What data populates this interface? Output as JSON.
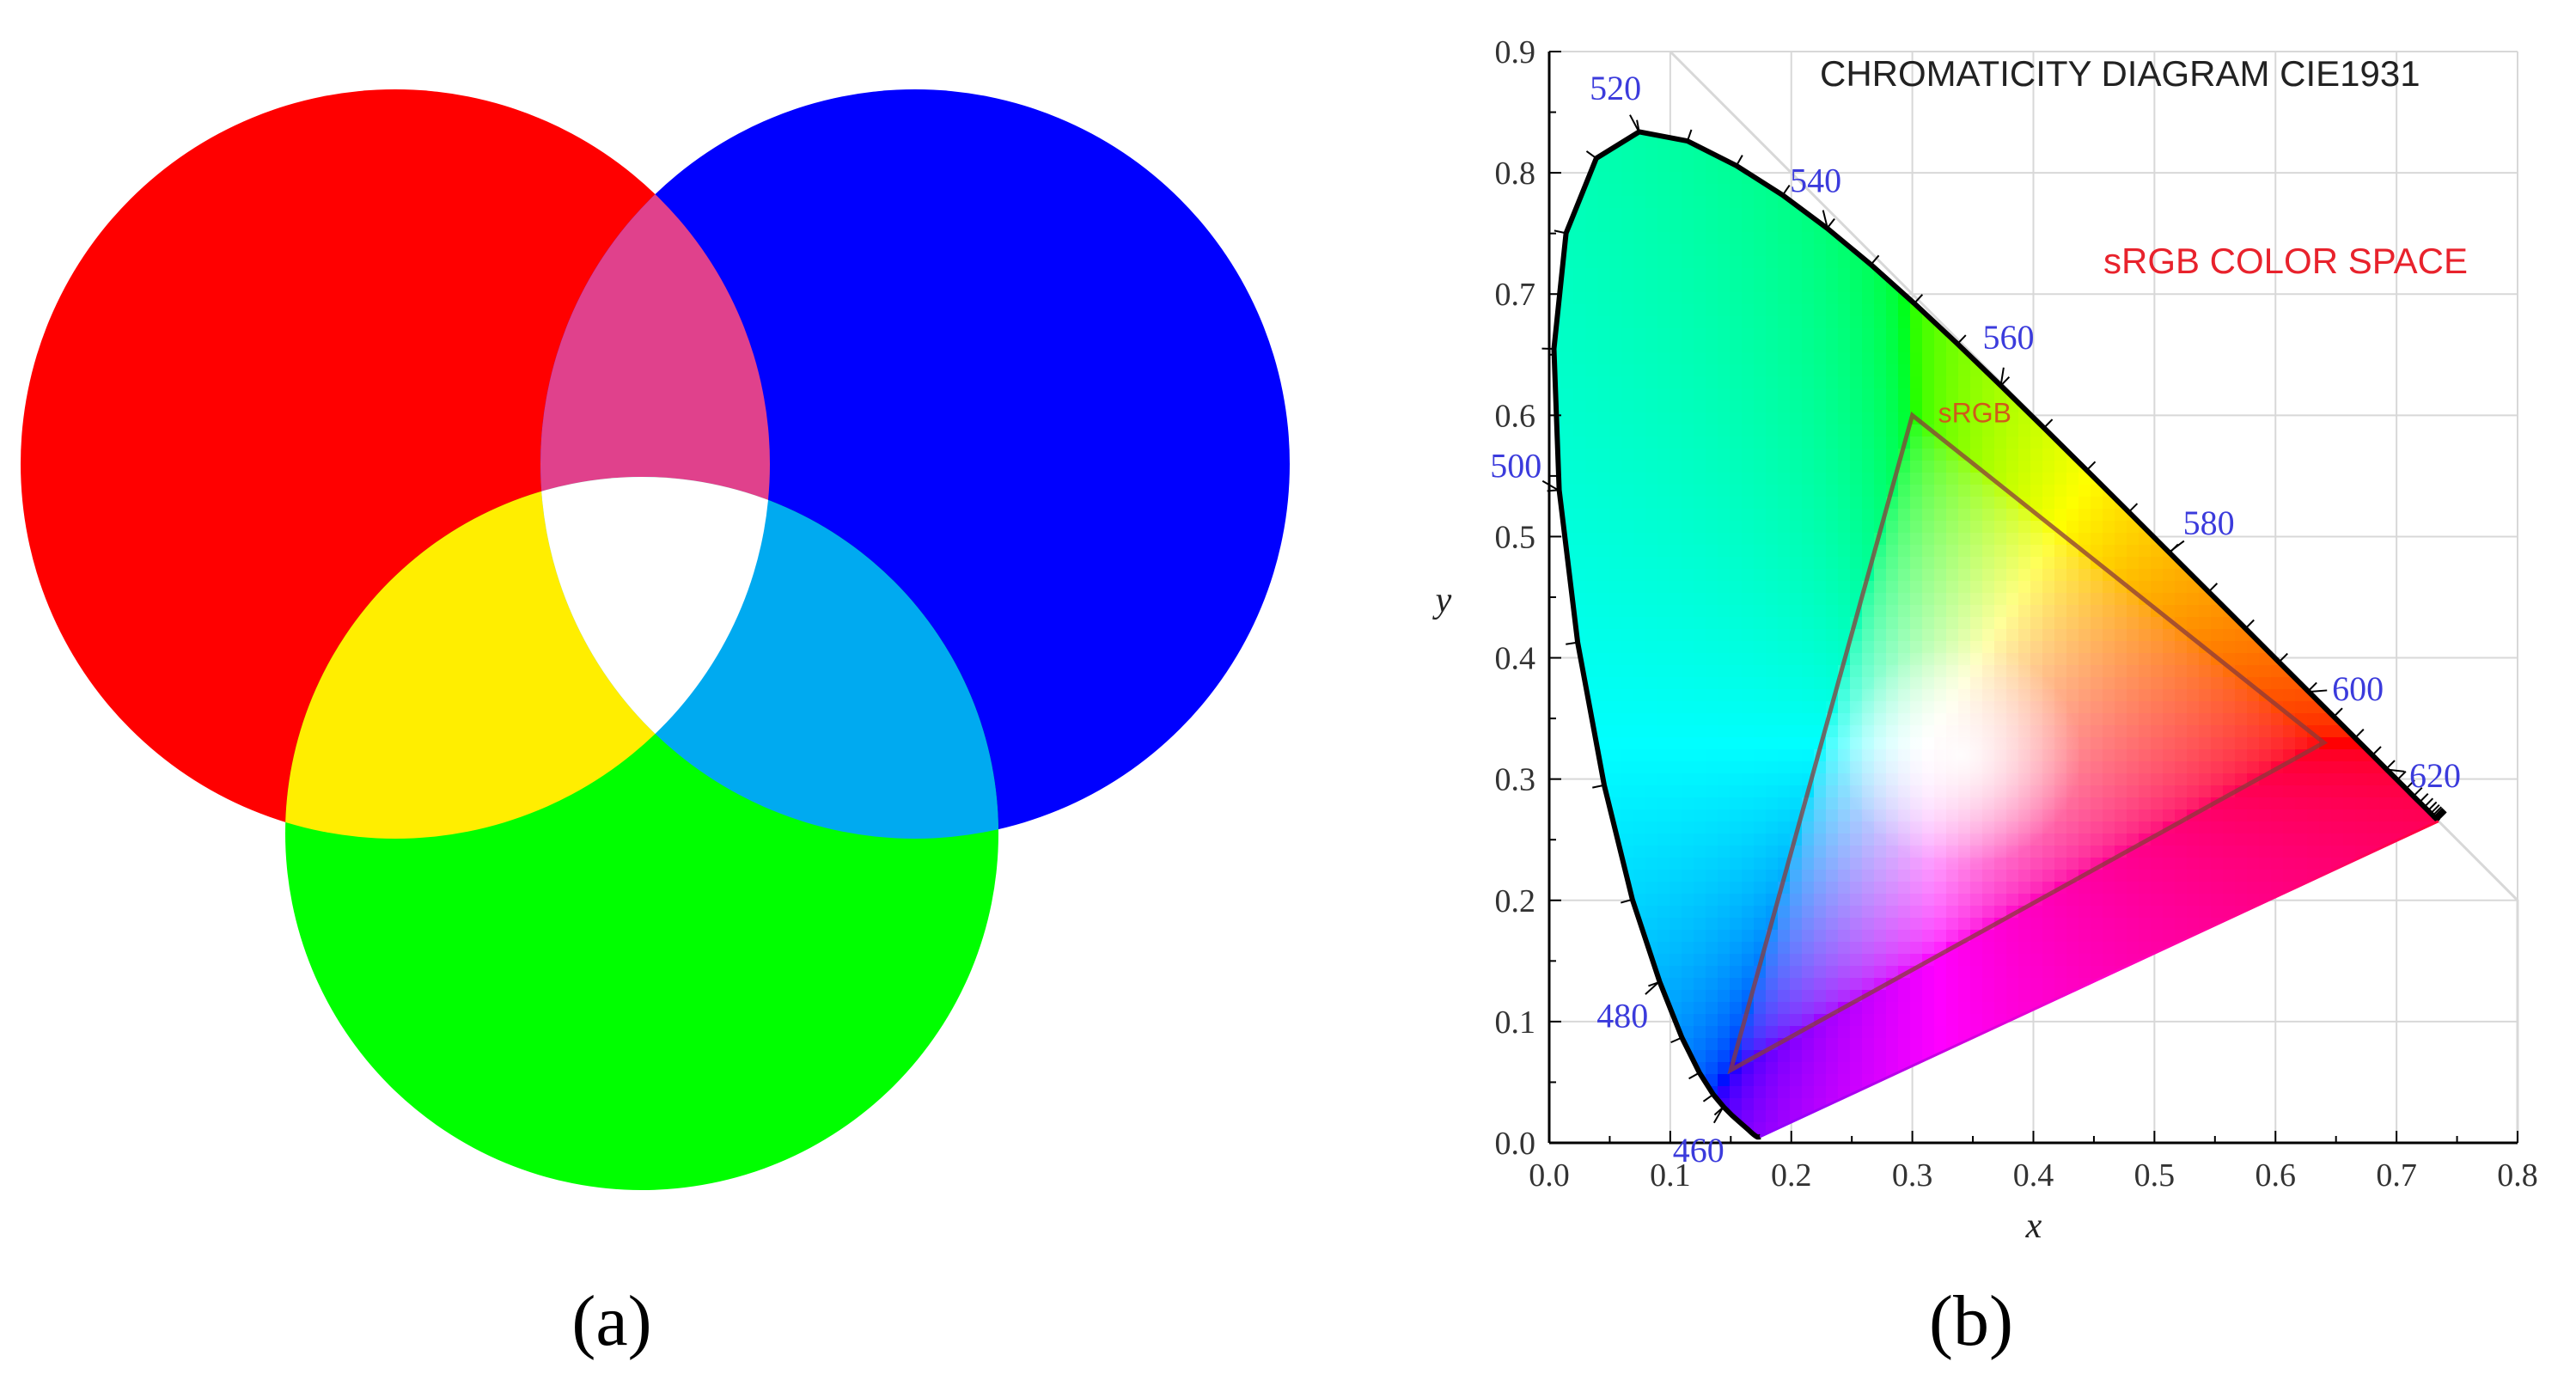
{
  "panel_a": {
    "caption": "(a)",
    "circles": [
      {
        "name": "red",
        "color": "#ff0000"
      },
      {
        "name": "blue",
        "color": "#0000ff"
      },
      {
        "name": "green",
        "color": "#00ff00"
      }
    ],
    "overlaps": {
      "red_blue": "#e0418c",
      "red_green": "#ffee00",
      "blue_green": "#00aaf0",
      "center": "#ffffff"
    }
  },
  "panel_b": {
    "caption": "(b)",
    "title": "CHROMATICITY DIAGRAM CIE1931",
    "subtitle": "sRGB COLOR SPACE",
    "subtitle_color": "#e8222c",
    "srgb_label": "sRGB",
    "srgb_label_color": "#d05a1a",
    "xlabel": "x",
    "ylabel": "y",
    "wavelength_label_color": "#3b3bdc",
    "chart_data": {
      "type": "scatter",
      "title": "CHROMATICITY DIAGRAM CIE1931",
      "xlabel": "x",
      "ylabel": "y",
      "xlim": [
        0.0,
        0.8
      ],
      "ylim": [
        0.0,
        0.9
      ],
      "xticks": [
        "0.0",
        "0.1",
        "0.2",
        "0.3",
        "0.4",
        "0.5",
        "0.6",
        "0.7",
        "0.8"
      ],
      "yticks": [
        "0.0",
        "0.1",
        "0.2",
        "0.3",
        "0.4",
        "0.5",
        "0.6",
        "0.7",
        "0.8",
        "0.9"
      ],
      "grid": true,
      "spectral_locus_labels": [
        {
          "label": "460",
          "x": 0.144,
          "y": 0.03
        },
        {
          "label": "480",
          "x": 0.091,
          "y": 0.133
        },
        {
          "label": "500",
          "x": 0.008,
          "y": 0.538
        },
        {
          "label": "520",
          "x": 0.074,
          "y": 0.834
        },
        {
          "label": "540",
          "x": 0.23,
          "y": 0.754
        },
        {
          "label": "560",
          "x": 0.373,
          "y": 0.624
        },
        {
          "label": "580",
          "x": 0.512,
          "y": 0.487
        },
        {
          "label": "600",
          "x": 0.627,
          "y": 0.372
        },
        {
          "label": "620",
          "x": 0.691,
          "y": 0.308
        }
      ],
      "series": [
        {
          "name": "sRGB",
          "points": [
            {
              "x": 0.64,
              "y": 0.33
            },
            {
              "x": 0.3,
              "y": 0.6
            },
            {
              "x": 0.15,
              "y": 0.06
            }
          ]
        }
      ]
    }
  }
}
